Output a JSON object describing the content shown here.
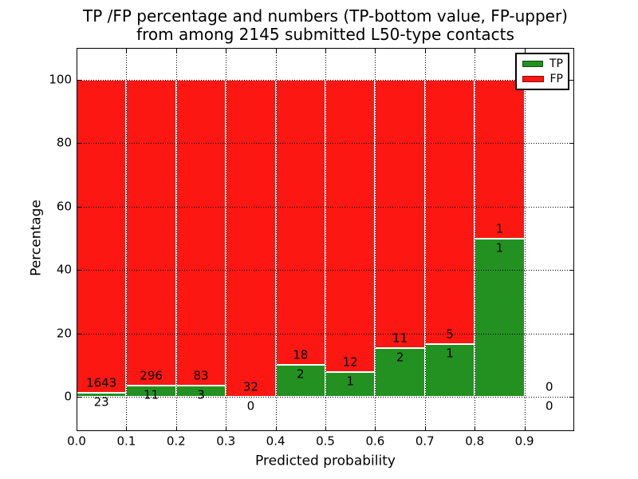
{
  "chart_data": {
    "type": "bar",
    "stacked": true,
    "title": "TP /FP percentage and numbers (TP-bottom value, FP-upper) from among 2145 submitted L50-type contacts",
    "title_line1": "TP /FP percentage and numbers (TP-bottom value, FP-upper)",
    "title_line2": "from among 2145 submitted L50-type contacts",
    "xlabel": "Predicted probability",
    "ylabel": "Percentage",
    "total_contacts": 2145,
    "xlim": [
      0.0,
      1.0
    ],
    "ylim": [
      -11,
      110
    ],
    "yticks": [
      0,
      20,
      40,
      60,
      80,
      100
    ],
    "xticks": [
      "0.0",
      "0.1",
      "0.2",
      "0.3",
      "0.4",
      "0.5",
      "0.6",
      "0.7",
      "0.8",
      "0.9"
    ],
    "grid": "dotted",
    "bar_unit_percent": 100,
    "colors": {
      "tp": "#229121",
      "fp": "#fc1712",
      "bar_edge": "#ffffff",
      "grid": "#000000"
    },
    "legend": {
      "position": "upper right",
      "entries": [
        {
          "label": "TP",
          "color": "#229121"
        },
        {
          "label": "FP",
          "color": "#fc1712"
        }
      ]
    },
    "bins": [
      {
        "range": "0.0-0.1",
        "tp": 23,
        "fp": 1643,
        "tp_pct": 1.38
      },
      {
        "range": "0.1-0.2",
        "tp": 11,
        "fp": 296,
        "tp_pct": 3.58
      },
      {
        "range": "0.2-0.3",
        "tp": 3,
        "fp": 83,
        "tp_pct": 3.49
      },
      {
        "range": "0.3-0.4",
        "tp": 0,
        "fp": 32,
        "tp_pct": 0.0
      },
      {
        "range": "0.4-0.5",
        "tp": 2,
        "fp": 18,
        "tp_pct": 10.0
      },
      {
        "range": "0.5-0.6",
        "tp": 1,
        "fp": 12,
        "tp_pct": 7.69
      },
      {
        "range": "0.6-0.7",
        "tp": 2,
        "fp": 11,
        "tp_pct": 15.38
      },
      {
        "range": "0.7-0.8",
        "tp": 1,
        "fp": 5,
        "tp_pct": 16.67
      },
      {
        "range": "0.8-0.9",
        "tp": 1,
        "fp": 1,
        "tp_pct": 50.0
      },
      {
        "range": "0.9-1.0",
        "tp": 0,
        "fp": 0,
        "tp_pct": null
      }
    ]
  }
}
